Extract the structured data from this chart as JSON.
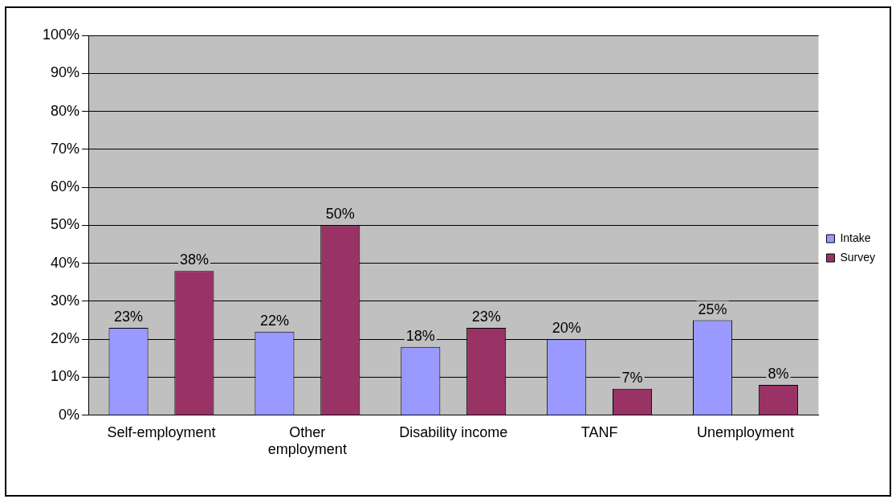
{
  "chart_data": {
    "type": "bar",
    "categories": [
      "Self-employment",
      "Other employment",
      "Disability income",
      "TANF",
      "Unemployment"
    ],
    "series": [
      {
        "name": "Intake",
        "color": "#9999ff",
        "values": [
          23,
          22,
          18,
          20,
          25
        ]
      },
      {
        "name": "Survey",
        "color": "#993366",
        "values": [
          38,
          50,
          23,
          7,
          8
        ]
      }
    ],
    "ylim": [
      0,
      100
    ],
    "yticks": [
      {
        "value": 0,
        "label": "0%"
      },
      {
        "value": 10,
        "label": "10%"
      },
      {
        "value": 20,
        "label": "20%"
      },
      {
        "value": 30,
        "label": "30%"
      },
      {
        "value": 40,
        "label": "40%"
      },
      {
        "value": 50,
        "label": "50%"
      },
      {
        "value": 60,
        "label": "60%"
      },
      {
        "value": 70,
        "label": "70%"
      },
      {
        "value": 80,
        "label": "80%"
      },
      {
        "value": 90,
        "label": "90%"
      },
      {
        "value": 100,
        "label": "100%"
      }
    ],
    "value_labels": [
      [
        "23%",
        "22%",
        "18%",
        "20%",
        "25%"
      ],
      [
        "38%",
        "50%",
        "23%",
        "7%",
        "8%"
      ]
    ],
    "grid": "y",
    "legend": "right"
  }
}
